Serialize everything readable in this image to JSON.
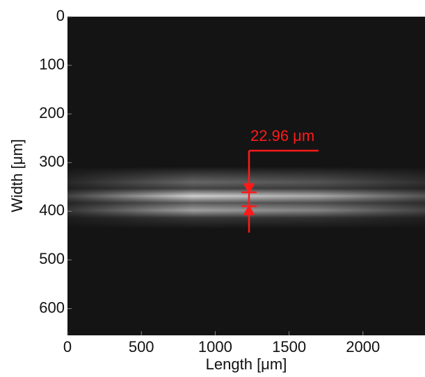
{
  "chart_data": {
    "type": "image",
    "xlabel": "Length [μm]",
    "ylabel": "Width [μm]",
    "xlim": [
      0,
      2420
    ],
    "xticks": [
      0,
      500,
      1000,
      1500,
      2000
    ],
    "ylim": [
      0,
      655
    ],
    "yticks": [
      0,
      100,
      200,
      300,
      400,
      500,
      600
    ],
    "y_inverted": true,
    "annotation": "22.96 μm",
    "annotation_color": "#ff1a1a"
  }
}
